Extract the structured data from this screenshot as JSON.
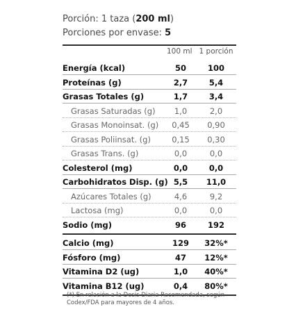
{
  "serving": {
    "portion_label": "Porción: 1 taza (",
    "portion_value": "200 ml",
    "portion_close": ")",
    "per_container_label": "Porciones por envase: ",
    "per_container_value": "5"
  },
  "columns": {
    "per100": "100 ml",
    "perportion": "1 porción"
  },
  "rows": [
    {
      "label": "Energía (kcal)",
      "v100": "50",
      "vport": "100"
    },
    {
      "label": "Proteínas (g)",
      "v100": "2,7",
      "vport": "5,4"
    },
    {
      "label": "Grasas Totales (g)",
      "v100": "1,7",
      "vport": "3,4"
    },
    {
      "label": "Grasas Saturadas (g)",
      "v100": "1,0",
      "vport": "2,0"
    },
    {
      "label": "Grasas Monoinsat. (g)",
      "v100": "0,45",
      "vport": "0,90"
    },
    {
      "label": "Grasas Poliinsat. (g)",
      "v100": "0,15",
      "vport": "0,30"
    },
    {
      "label": "Grasas Trans. (g)",
      "v100": "0,0",
      "vport": "0,0"
    },
    {
      "label": "Colesterol (mg)",
      "v100": "0,0",
      "vport": "0,0"
    },
    {
      "label": "Carbohidratos Disp. (g)",
      "v100": "5,5",
      "vport": "11,0"
    },
    {
      "label": "Azúcares Totales (g)",
      "v100": "4,6",
      "vport": "9,2"
    },
    {
      "label": "Lactosa (mg)",
      "v100": "0,0",
      "vport": "0,0"
    },
    {
      "label": "Sodio (mg)",
      "v100": "96",
      "vport": "192"
    },
    {
      "label": "Calcio (mg)",
      "v100": "129",
      "vport": "32%*"
    },
    {
      "label": "Fósforo (mg)",
      "v100": "47",
      "vport": "12%*"
    },
    {
      "label": "Vitamina D2 (ug)",
      "v100": "1,0",
      "vport": "40%*"
    },
    {
      "label": "Vitamina B12 (ug)",
      "v100": "0,4",
      "vport": "80%*"
    }
  ],
  "footnote": {
    "line1": "(*) En relación a la Dosis Diaria Recomendada, según",
    "line2": "Codex/FDA para mayores de 4 años."
  }
}
